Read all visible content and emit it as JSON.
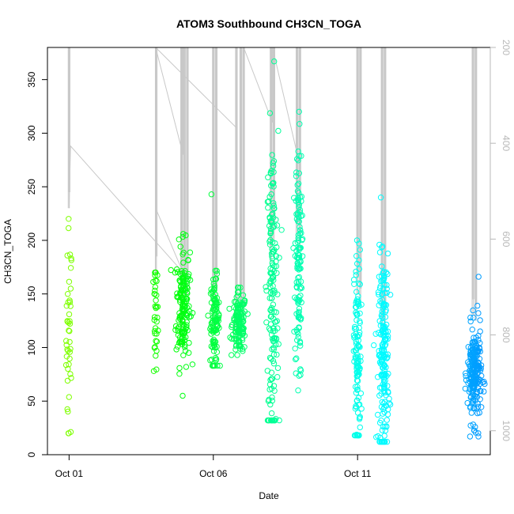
{
  "chart_data": {
    "type": "scatter",
    "title": "ATOM3 Southbound CH3CN_TOGA",
    "xlabel": "Date",
    "ylabel": "CH3CN_TOGA",
    "x_ticks": [
      {
        "value": 0,
        "label": "Oct 01"
      },
      {
        "value": 5,
        "label": "Oct 06"
      },
      {
        "value": 10,
        "label": "Oct 11"
      }
    ],
    "xlim": [
      -0.75,
      14.6
    ],
    "ylim": [
      0,
      380
    ],
    "y_ticks": [
      0,
      50,
      100,
      150,
      200,
      250,
      300,
      350
    ],
    "y2lim": [
      200,
      1050
    ],
    "y2_ticks": [
      200,
      400,
      600,
      800,
      1000
    ],
    "point_color_scale": [
      "#7fff00",
      "#00ff00",
      "#00ff99",
      "#00ffff",
      "#0099ff"
    ],
    "trace_color": "#c8c8c8",
    "clusters": [
      {
        "x": 0.0,
        "spread": 0.05,
        "count": 45,
        "mean": 110,
        "sd": 50,
        "min": 20,
        "max": 220
      },
      {
        "x": 3.0,
        "spread": 0.04,
        "count": 35,
        "mean": 130,
        "sd": 25,
        "min": 78,
        "max": 170
      },
      {
        "x": 3.95,
        "spread": 0.12,
        "count": 160,
        "mean": 140,
        "sd": 28,
        "min": 55,
        "max": 206
      },
      {
        "x": 5.05,
        "spread": 0.08,
        "count": 110,
        "mean": 125,
        "sd": 20,
        "min": 83,
        "max": 243
      },
      {
        "x": 5.9,
        "spread": 0.12,
        "count": 140,
        "mean": 122,
        "sd": 14,
        "min": 93,
        "max": 156
      },
      {
        "x": 7.05,
        "spread": 0.1,
        "count": 170,
        "mean": 150,
        "sd": 75,
        "min": 32,
        "max": 367
      },
      {
        "x": 7.95,
        "spread": 0.06,
        "count": 130,
        "mean": 180,
        "sd": 55,
        "min": 60,
        "max": 320
      },
      {
        "x": 10.0,
        "spread": 0.06,
        "count": 120,
        "mean": 90,
        "sd": 50,
        "min": 18,
        "max": 200
      },
      {
        "x": 10.9,
        "spread": 0.09,
        "count": 200,
        "mean": 95,
        "sd": 45,
        "min": 12,
        "max": 240
      },
      {
        "x": 14.05,
        "spread": 0.12,
        "count": 220,
        "mean": 75,
        "sd": 22,
        "min": 17,
        "max": 166
      }
    ],
    "trace_spikes": [
      {
        "x": 0.0,
        "top": 380,
        "bottom": 230
      },
      {
        "x": 3.02,
        "top": 380,
        "bottom": 170
      },
      {
        "x": 3.9,
        "top": 380,
        "bottom": 110
      },
      {
        "x": 4.0,
        "top": 380,
        "bottom": 140
      },
      {
        "x": 4.1,
        "top": 380,
        "bottom": 150
      },
      {
        "x": 5.0,
        "top": 380,
        "bottom": 120
      },
      {
        "x": 5.1,
        "top": 380,
        "bottom": 140
      },
      {
        "x": 5.8,
        "top": 380,
        "bottom": 120
      },
      {
        "x": 5.95,
        "top": 380,
        "bottom": 130
      },
      {
        "x": 6.05,
        "top": 380,
        "bottom": 125
      },
      {
        "x": 7.0,
        "top": 380,
        "bottom": 180
      },
      {
        "x": 7.1,
        "top": 380,
        "bottom": 200
      },
      {
        "x": 7.9,
        "top": 380,
        "bottom": 200
      },
      {
        "x": 8.0,
        "top": 380,
        "bottom": 190
      },
      {
        "x": 10.0,
        "top": 380,
        "bottom": 150
      },
      {
        "x": 10.1,
        "top": 380,
        "bottom": 140
      },
      {
        "x": 10.85,
        "top": 380,
        "bottom": 110
      },
      {
        "x": 10.95,
        "top": 380,
        "bottom": 120
      },
      {
        "x": 14.0,
        "top": 380,
        "bottom": 130
      },
      {
        "x": 14.1,
        "top": 380,
        "bottom": 125
      }
    ],
    "trace_path": [
      [
        0.0,
        380
      ],
      [
        0.0,
        230
      ],
      [
        0.05,
        288
      ],
      [
        3.95,
        170
      ],
      [
        3.0,
        230
      ],
      [
        3.0,
        170
      ],
      [
        3.0,
        380
      ],
      [
        3.95,
        280
      ],
      [
        3.95,
        380
      ],
      [
        3.0,
        380
      ],
      [
        5.8,
        305
      ],
      [
        5.8,
        380
      ],
      [
        6.05,
        380
      ],
      [
        7.05,
        310
      ],
      [
        7.05,
        380
      ],
      [
        8.0,
        270
      ],
      [
        8.0,
        380
      ]
    ]
  }
}
